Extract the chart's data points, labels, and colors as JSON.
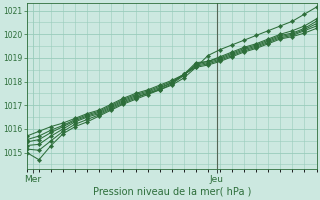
{
  "xlabel": "Pression niveau de la mer( hPa )",
  "ylim": [
    1014.3,
    1021.3
  ],
  "xlim": [
    0,
    1
  ],
  "yticks": [
    1015,
    1016,
    1017,
    1018,
    1019,
    1020,
    1021
  ],
  "bg_color": "#cce8e0",
  "grid_color": "#99ccbb",
  "line_color": "#2d6e3a",
  "marker_color": "#2d6e3a",
  "vline_x": 0.655,
  "x_tick_labels": [
    "Mer",
    "Jeu"
  ],
  "x_tick_positions": [
    0.02,
    0.655
  ],
  "series": [
    [
      1015.0,
      1014.7,
      1015.3,
      1015.8,
      1016.1,
      1016.3,
      1016.55,
      1016.8,
      1017.05,
      1017.25,
      1017.45,
      1017.65,
      1017.85,
      1018.15,
      1018.6,
      1019.1,
      1019.35,
      1019.55,
      1019.75,
      1019.95,
      1020.15,
      1020.35,
      1020.55,
      1020.85,
      1021.15
    ],
    [
      1015.15,
      1015.1,
      1015.5,
      1015.9,
      1016.2,
      1016.4,
      1016.6,
      1016.85,
      1017.1,
      1017.3,
      1017.5,
      1017.65,
      1017.9,
      1018.25,
      1018.75,
      1018.85,
      1019.05,
      1019.25,
      1019.45,
      1019.6,
      1019.8,
      1020.0,
      1020.15,
      1020.35,
      1020.65
    ],
    [
      1015.3,
      1015.35,
      1015.7,
      1016.0,
      1016.3,
      1016.5,
      1016.65,
      1016.9,
      1017.15,
      1017.35,
      1017.5,
      1017.7,
      1017.95,
      1018.3,
      1018.8,
      1018.85,
      1019.0,
      1019.2,
      1019.4,
      1019.55,
      1019.75,
      1019.95,
      1020.05,
      1020.25,
      1020.55
    ],
    [
      1015.45,
      1015.55,
      1015.85,
      1016.1,
      1016.35,
      1016.55,
      1016.7,
      1016.95,
      1017.2,
      1017.4,
      1017.55,
      1017.75,
      1017.95,
      1018.3,
      1018.7,
      1018.8,
      1018.95,
      1019.15,
      1019.35,
      1019.5,
      1019.7,
      1019.9,
      1020.0,
      1020.2,
      1020.45
    ],
    [
      1015.55,
      1015.7,
      1015.95,
      1016.15,
      1016.4,
      1016.6,
      1016.75,
      1017.0,
      1017.25,
      1017.45,
      1017.6,
      1017.8,
      1018.0,
      1018.3,
      1018.65,
      1018.75,
      1018.9,
      1019.1,
      1019.3,
      1019.45,
      1019.65,
      1019.85,
      1019.95,
      1020.15,
      1020.35
    ],
    [
      1015.7,
      1015.9,
      1016.1,
      1016.25,
      1016.45,
      1016.65,
      1016.8,
      1017.05,
      1017.3,
      1017.5,
      1017.65,
      1017.85,
      1018.05,
      1018.3,
      1018.6,
      1018.7,
      1018.85,
      1019.05,
      1019.25,
      1019.4,
      1019.6,
      1019.8,
      1019.9,
      1020.05,
      1020.25
    ]
  ]
}
